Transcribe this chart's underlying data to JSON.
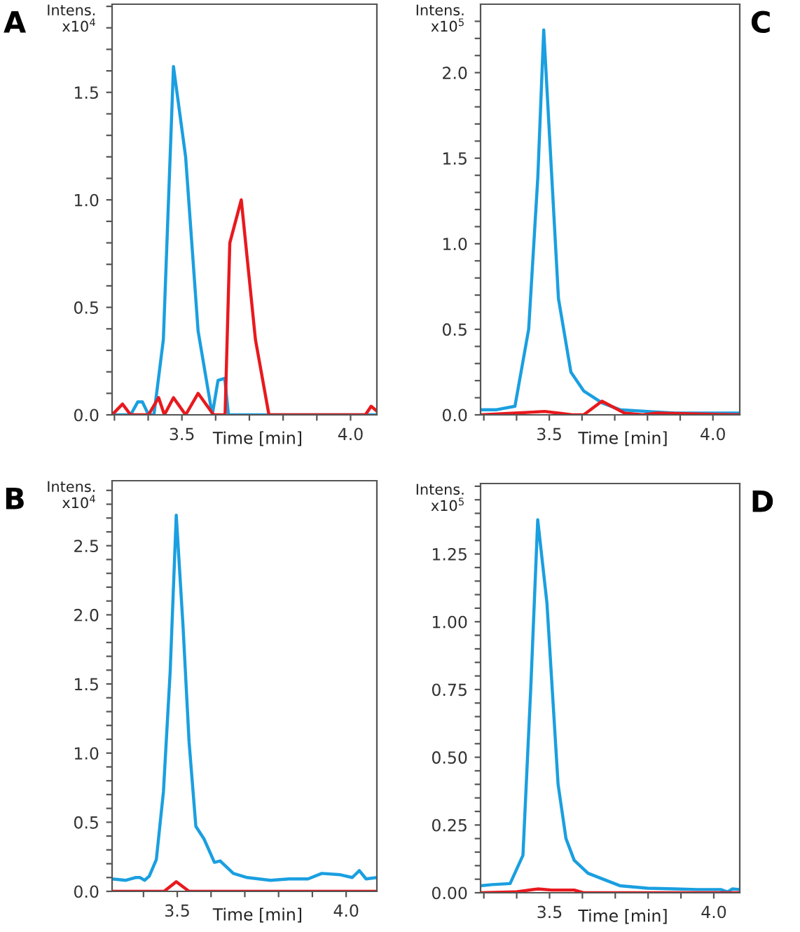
{
  "chart_data": [
    {
      "type": "line",
      "title": "A",
      "xlabel": "Time [min]",
      "ylabel": "Intens.\nx10$^{4}$",
      "xlim": [
        3.293,
        4.078
      ],
      "ylim": [
        0,
        1.91
      ],
      "grid": false,
      "xticks": [
        {
          "value": 3.3,
          "label": null
        },
        {
          "value": 3.4,
          "label": null
        },
        {
          "value": 3.5,
          "label": "3.5"
        },
        {
          "value": 3.6,
          "label": null
        },
        {
          "value": 3.7,
          "label": null
        },
        {
          "value": 3.8,
          "label": null
        },
        {
          "value": 3.9,
          "label": null
        },
        {
          "value": 4.0,
          "label": "4.0"
        }
      ],
      "yticks": [
        {
          "value": 0,
          "label": "0.0"
        },
        {
          "value": 0.1,
          "label": null
        },
        {
          "value": 0.2,
          "label": null
        },
        {
          "value": 0.3,
          "label": null
        },
        {
          "value": 0.4,
          "label": null
        },
        {
          "value": 0.5,
          "label": "0.5"
        },
        {
          "value": 0.6,
          "label": null
        },
        {
          "value": 0.7,
          "label": null
        },
        {
          "value": 0.8,
          "label": null
        },
        {
          "value": 0.9,
          "label": null
        },
        {
          "value": 1.0,
          "label": "1.0"
        },
        {
          "value": 1.1,
          "label": null
        },
        {
          "value": 1.2,
          "label": null
        },
        {
          "value": 1.3,
          "label": null
        },
        {
          "value": 1.4,
          "label": null
        },
        {
          "value": 1.5,
          "label": "1.5"
        },
        {
          "value": 1.6,
          "label": null
        },
        {
          "value": 1.7,
          "label": null
        },
        {
          "value": 1.8,
          "label": null
        },
        {
          "value": 1.9,
          "label": null
        }
      ],
      "series": [
        {
          "color": "#1a9fe0",
          "x": [
            3.293,
            3.348,
            3.369,
            3.383,
            3.401,
            3.417,
            3.445,
            3.475,
            3.511,
            3.548,
            3.59,
            3.607,
            3.627,
            3.638,
            4.076
          ],
          "values": [
            0,
            0,
            0.06,
            0.06,
            0,
            0,
            0.35,
            1.62,
            1.2,
            0.39,
            0,
            0.16,
            0.17,
            0,
            0
          ]
        },
        {
          "color": "#e8191e",
          "x": [
            3.293,
            3.324,
            3.348,
            3.401,
            3.431,
            3.448,
            3.475,
            3.511,
            3.548,
            3.594,
            3.628,
            3.642,
            3.676,
            3.718,
            3.758,
            4.044,
            4.061,
            4.076
          ],
          "values": [
            0,
            0.05,
            0,
            0,
            0.08,
            0,
            0.08,
            0,
            0.1,
            0,
            0,
            0.8,
            1.0,
            0.35,
            0,
            0,
            0.04,
            0.02
          ]
        }
      ]
    },
    {
      "type": "line",
      "title": "C",
      "xlabel": "Time [min]",
      "ylabel": "Intens.\nx10$^{5}$",
      "xlim": [
        3.29,
        4.082
      ],
      "ylim": [
        0,
        2.4
      ],
      "xticks": [
        {
          "value": 3.3,
          "label": null
        },
        {
          "value": 3.4,
          "label": null
        },
        {
          "value": 3.5,
          "label": "3.5"
        },
        {
          "value": 3.6,
          "label": null
        },
        {
          "value": 3.7,
          "label": null
        },
        {
          "value": 3.8,
          "label": null
        },
        {
          "value": 3.9,
          "label": null
        },
        {
          "value": 4.0,
          "label": "4.0"
        }
      ],
      "yticks": [
        {
          "value": 0,
          "label": "0.0"
        },
        {
          "value": 0.1,
          "label": null
        },
        {
          "value": 0.2,
          "label": null
        },
        {
          "value": 0.3,
          "label": null
        },
        {
          "value": 0.4,
          "label": null
        },
        {
          "value": 0.5,
          "label": "0.5"
        },
        {
          "value": 0.6,
          "label": null
        },
        {
          "value": 0.7,
          "label": null
        },
        {
          "value": 0.8,
          "label": null
        },
        {
          "value": 0.9,
          "label": null
        },
        {
          "value": 1.0,
          "label": "1.0"
        },
        {
          "value": 1.1,
          "label": null
        },
        {
          "value": 1.2,
          "label": null
        },
        {
          "value": 1.3,
          "label": null
        },
        {
          "value": 1.4,
          "label": null
        },
        {
          "value": 1.5,
          "label": "1.5"
        },
        {
          "value": 1.6,
          "label": null
        },
        {
          "value": 1.7,
          "label": null
        },
        {
          "value": 1.8,
          "label": null
        },
        {
          "value": 1.9,
          "label": null
        },
        {
          "value": 2.0,
          "label": "2.0"
        },
        {
          "value": 2.1,
          "label": null
        },
        {
          "value": 2.2,
          "label": null
        },
        {
          "value": 2.3,
          "label": null
        }
      ],
      "grid": false,
      "series": [
        {
          "color": "#1a9fe0",
          "x": [
            3.29,
            3.339,
            3.395,
            3.437,
            3.465,
            3.483,
            3.528,
            3.566,
            3.605,
            3.661,
            3.716,
            3.8,
            3.884,
            3.954,
            4.024,
            4.082
          ],
          "values": [
            0.03,
            0.03,
            0.05,
            0.5,
            1.39,
            2.25,
            0.68,
            0.25,
            0.14,
            0.07,
            0.03,
            0.02,
            0.01,
            0.01,
            0.01,
            0.01
          ]
        },
        {
          "color": "#e8191e",
          "x": [
            3.29,
            3.395,
            3.486,
            3.528,
            3.57,
            3.605,
            3.661,
            3.73,
            3.786,
            3.828,
            4.082
          ],
          "values": [
            0,
            0.01,
            0.02,
            0.01,
            0,
            0,
            0.08,
            0.01,
            0,
            0.01,
            0
          ]
        }
      ]
    },
    {
      "type": "line",
      "title": "B",
      "xlabel": "Time [min]",
      "ylabel": "Intens.\nx10$^{4}$",
      "xlim": [
        3.307,
        4.091
      ],
      "ylim": [
        0,
        2.97
      ],
      "xticks": [
        {
          "value": 3.4,
          "label": null
        },
        {
          "value": 3.5,
          "label": "3.5"
        },
        {
          "value": 3.6,
          "label": null
        },
        {
          "value": 3.7,
          "label": null
        },
        {
          "value": 3.8,
          "label": null
        },
        {
          "value": 3.9,
          "label": null
        },
        {
          "value": 4.0,
          "label": "4.0"
        }
      ],
      "yticks": [
        {
          "value": 0,
          "label": "0.0"
        },
        {
          "value": 0.1,
          "label": null
        },
        {
          "value": 0.2,
          "label": null
        },
        {
          "value": 0.3,
          "label": null
        },
        {
          "value": 0.4,
          "label": null
        },
        {
          "value": 0.5,
          "label": "0.5"
        },
        {
          "value": 0.6,
          "label": null
        },
        {
          "value": 0.7,
          "label": null
        },
        {
          "value": 0.8,
          "label": null
        },
        {
          "value": 0.9,
          "label": null
        },
        {
          "value": 1.0,
          "label": "1.0"
        },
        {
          "value": 1.1,
          "label": null
        },
        {
          "value": 1.2,
          "label": null
        },
        {
          "value": 1.3,
          "label": null
        },
        {
          "value": 1.4,
          "label": null
        },
        {
          "value": 1.5,
          "label": "1.5"
        },
        {
          "value": 1.6,
          "label": null
        },
        {
          "value": 1.7,
          "label": null
        },
        {
          "value": 1.8,
          "label": null
        },
        {
          "value": 1.9,
          "label": null
        },
        {
          "value": 2.0,
          "label": "2.0"
        },
        {
          "value": 2.1,
          "label": null
        },
        {
          "value": 2.2,
          "label": null
        },
        {
          "value": 2.3,
          "label": null
        },
        {
          "value": 2.4,
          "label": null
        },
        {
          "value": 2.5,
          "label": "2.5"
        },
        {
          "value": 2.6,
          "label": null
        },
        {
          "value": 2.7,
          "label": null
        },
        {
          "value": 2.8,
          "label": null
        },
        {
          "value": 2.9,
          "label": null
        }
      ],
      "grid": false,
      "series": [
        {
          "color": "#1a9fe0",
          "x": [
            3.307,
            3.348,
            3.376,
            3.39,
            3.403,
            3.417,
            3.438,
            3.459,
            3.479,
            3.497,
            3.517,
            3.535,
            3.555,
            3.579,
            3.61,
            3.627,
            3.666,
            3.707,
            3.776,
            3.831,
            3.887,
            3.928,
            3.983,
            4.018,
            4.039,
            4.059,
            4.091
          ],
          "values": [
            0.09,
            0.08,
            0.1,
            0.1,
            0.08,
            0.11,
            0.23,
            0.72,
            1.59,
            2.72,
            1.92,
            1.08,
            0.47,
            0.38,
            0.21,
            0.22,
            0.13,
            0.1,
            0.08,
            0.09,
            0.09,
            0.13,
            0.12,
            0.1,
            0.15,
            0.09,
            0.1
          ]
        },
        {
          "color": "#e8191e",
          "x": [
            3.307,
            3.461,
            3.497,
            3.535,
            4.091
          ],
          "values": [
            0,
            0,
            0.07,
            0,
            0
          ]
        }
      ]
    },
    {
      "type": "line",
      "title": "D",
      "xlabel": "Time [min]",
      "ylabel": "Intens.\nx10$^{5}$",
      "xlim": [
        3.29,
        4.079
      ],
      "ylim": [
        0,
        1.51
      ],
      "xticks": [
        {
          "value": 3.3,
          "label": null
        },
        {
          "value": 3.4,
          "label": null
        },
        {
          "value": 3.5,
          "label": "3.5"
        },
        {
          "value": 3.6,
          "label": null
        },
        {
          "value": 3.7,
          "label": null
        },
        {
          "value": 3.8,
          "label": null
        },
        {
          "value": 3.9,
          "label": null
        },
        {
          "value": 4.0,
          "label": "4.0"
        }
      ],
      "yticks": [
        {
          "value": 0,
          "label": "0.00"
        },
        {
          "value": 0.05,
          "label": null
        },
        {
          "value": 0.1,
          "label": null
        },
        {
          "value": 0.15,
          "label": null
        },
        {
          "value": 0.2,
          "label": null
        },
        {
          "value": 0.25,
          "label": "0.25"
        },
        {
          "value": 0.3,
          "label": null
        },
        {
          "value": 0.35,
          "label": null
        },
        {
          "value": 0.4,
          "label": null
        },
        {
          "value": 0.45,
          "label": null
        },
        {
          "value": 0.5,
          "label": "0.50"
        },
        {
          "value": 0.55,
          "label": null
        },
        {
          "value": 0.6,
          "label": null
        },
        {
          "value": 0.65,
          "label": null
        },
        {
          "value": 0.7,
          "label": null
        },
        {
          "value": 0.75,
          "label": "0.75"
        },
        {
          "value": 0.8,
          "label": null
        },
        {
          "value": 0.85,
          "label": null
        },
        {
          "value": 0.9,
          "label": null
        },
        {
          "value": 0.95,
          "label": null
        },
        {
          "value": 1.0,
          "label": "1.00"
        },
        {
          "value": 1.05,
          "label": null
        },
        {
          "value": 1.1,
          "label": null
        },
        {
          "value": 1.15,
          "label": null
        },
        {
          "value": 1.2,
          "label": null
        },
        {
          "value": 1.25,
          "label": "1.25"
        },
        {
          "value": 1.3,
          "label": null
        },
        {
          "value": 1.35,
          "label": null
        },
        {
          "value": 1.4,
          "label": null
        },
        {
          "value": 1.45,
          "label": null
        },
        {
          "value": 1.5,
          "label": null
        }
      ],
      "grid": false,
      "series": [
        {
          "color": "#1a9fe0",
          "x": [
            3.29,
            3.325,
            3.38,
            3.419,
            3.443,
            3.464,
            3.492,
            3.526,
            3.55,
            3.575,
            3.617,
            3.659,
            3.714,
            3.798,
            3.882,
            3.951,
            4.021,
            4.042,
            4.056,
            4.079
          ],
          "values": [
            0.026,
            0.03,
            0.034,
            0.138,
            0.76,
            1.376,
            1.07,
            0.4,
            0.2,
            0.12,
            0.072,
            0.052,
            0.026,
            0.017,
            0.014,
            0.012,
            0.012,
            0.003,
            0.014,
            0.012
          ]
        },
        {
          "color": "#e8191e",
          "x": [
            3.29,
            3.395,
            3.464,
            3.506,
            3.575,
            3.603,
            4.021,
            4.079
          ],
          "values": [
            0,
            0.003,
            0.014,
            0.01,
            0.01,
            0,
            0,
            0
          ]
        }
      ]
    }
  ]
}
